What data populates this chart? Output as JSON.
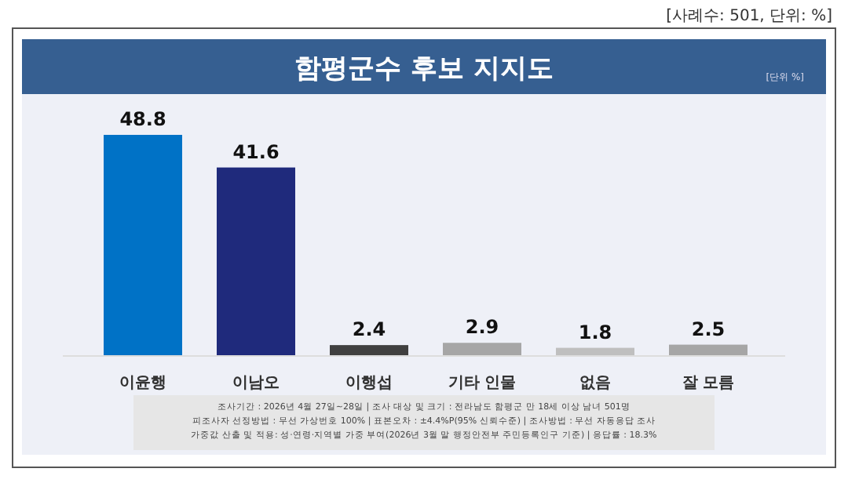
{
  "chart_data": {
    "type": "bar",
    "title": "함평군수 후보 지지도",
    "categories": [
      "이윤행",
      "이남오",
      "이행섭",
      "기타 인물",
      "없음",
      "잘 모름"
    ],
    "values": [
      48.8,
      41.6,
      2.4,
      2.9,
      1.8,
      2.5
    ],
    "colors": [
      "#0072c6",
      "#1f2a7c",
      "#404040",
      "#a6a6a6",
      "#bfbfbf",
      "#a6a6a6"
    ],
    "data_labels": true,
    "annotations": [
      "[사례수: 501, 단위: %]",
      "[단위 %]",
      "조사기간 : 2026년 4월 27일~28일 | 조사 대상 및 크기 : 전라남도 함평군 만 18세 이상 남녀 501명",
      "피조사자 선정방법 : 무선 가상번호 100% | 표본오차 : ±4.4%P(95% 신뢰수준) | 조사방법 : 무선 자동응답 조사",
      "가중값 산출 및 적용: 성·연령·지역별 가중 부여(2026년 3월 말 행정안전부 주민등록인구 기준) | 응답률 : 18.3%"
    ]
  }
}
